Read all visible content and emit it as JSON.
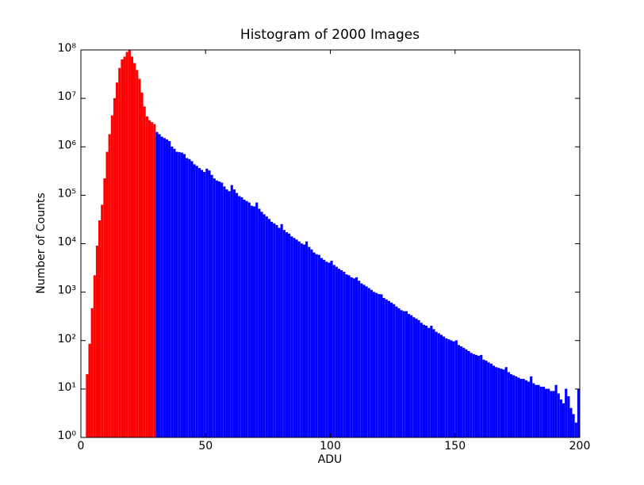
{
  "chart_data": {
    "type": "histogram",
    "title": "Histogram of 2000 Images",
    "x_label": "ADU",
    "y_label": "Number of Counts",
    "log_y": true,
    "xlim": [
      0,
      200
    ],
    "ylim": [
      1,
      100000000
    ],
    "xticks": [
      0,
      50,
      100,
      150,
      200
    ],
    "yticks": [
      {
        "value": 1,
        "label": "10⁰"
      },
      {
        "value": 10,
        "label": "10¹"
      },
      {
        "value": 100,
        "label": "10²"
      },
      {
        "value": 1000,
        "label": "10³"
      },
      {
        "value": 10000,
        "label": "10⁴"
      },
      {
        "value": 100000,
        "label": "10⁵"
      },
      {
        "value": 1000000,
        "label": "10⁶"
      },
      {
        "value": 10000000,
        "label": "10⁷"
      },
      {
        "value": 100000000,
        "label": "10⁸"
      }
    ],
    "series": [
      {
        "color": "#ff0000",
        "bins": [
          2,
          3,
          4,
          5,
          6,
          7,
          8,
          9,
          10,
          11,
          12,
          13,
          14,
          15,
          16,
          17,
          18,
          19,
          20,
          21,
          22,
          23,
          24,
          25,
          26,
          27,
          28,
          29,
          30
        ],
        "values": [
          20,
          85,
          460,
          2200,
          9000,
          30000,
          63000,
          220000,
          780000,
          1800000,
          4400000,
          10000000,
          21000000,
          42000000,
          63000000,
          72000000,
          90000000,
          100000000,
          72000000,
          53000000,
          38000000,
          25000000,
          13000000,
          6700000,
          4200000,
          3500000,
          3200000,
          2900000
        ]
      },
      {
        "color": "#0000ff",
        "bins": [
          30,
          31,
          32,
          33,
          34,
          35,
          36,
          37,
          38,
          39,
          40,
          41,
          42,
          43,
          44,
          45,
          46,
          47,
          48,
          49,
          50,
          51,
          52,
          53,
          54,
          55,
          56,
          57,
          58,
          59,
          60,
          61,
          62,
          63,
          64,
          65,
          66,
          67,
          68,
          69,
          70,
          71,
          72,
          73,
          74,
          75,
          76,
          77,
          78,
          79,
          80,
          81,
          82,
          83,
          84,
          85,
          86,
          87,
          88,
          89,
          90,
          91,
          92,
          93,
          94,
          95,
          96,
          97,
          98,
          99,
          100,
          101,
          102,
          103,
          104,
          105,
          106,
          107,
          108,
          109,
          110,
          111,
          112,
          113,
          114,
          115,
          116,
          117,
          118,
          119,
          120,
          121,
          122,
          123,
          124,
          125,
          126,
          127,
          128,
          129,
          130,
          131,
          132,
          133,
          134,
          135,
          136,
          137,
          138,
          139,
          140,
          141,
          142,
          143,
          144,
          145,
          146,
          147,
          148,
          149,
          150,
          151,
          152,
          153,
          154,
          155,
          156,
          157,
          158,
          159,
          160,
          161,
          162,
          163,
          164,
          165,
          166,
          167,
          168,
          169,
          170,
          171,
          172,
          173,
          174,
          175,
          176,
          177,
          178,
          179,
          180,
          181,
          182,
          183,
          184,
          185,
          186,
          187,
          188,
          189,
          190,
          191,
          192,
          193,
          194,
          195,
          196,
          197,
          198,
          199,
          200
        ],
        "values": [
          2000000,
          1800000,
          1600000,
          1500000,
          1400000,
          1300000,
          1000000,
          900000,
          780000,
          770000,
          750000,
          700000,
          580000,
          550000,
          500000,
          430000,
          400000,
          360000,
          330000,
          300000,
          350000,
          320000,
          260000,
          220000,
          200000,
          190000,
          180000,
          150000,
          130000,
          120000,
          160000,
          130000,
          110000,
          95000,
          90000,
          80000,
          75000,
          70000,
          60000,
          58000,
          70000,
          52000,
          45000,
          40000,
          36000,
          32000,
          28000,
          26000,
          24000,
          21000,
          25000,
          19000,
          17000,
          16000,
          14000,
          13000,
          12000,
          11000,
          10000,
          9500,
          11000,
          8500,
          7500,
          6500,
          6000,
          5800,
          5000,
          4600,
          4200,
          4000,
          4400,
          3600,
          3300,
          3000,
          2800,
          2600,
          2300,
          2200,
          2000,
          1900,
          2000,
          1700,
          1500,
          1400,
          1300,
          1200,
          1100,
          1000,
          950,
          900,
          890,
          750,
          700,
          650,
          600,
          560,
          500,
          460,
          420,
          400,
          400,
          350,
          330,
          300,
          280,
          260,
          230,
          210,
          200,
          180,
          200,
          170,
          150,
          140,
          130,
          120,
          110,
          105,
          100,
          95,
          100,
          80,
          75,
          70,
          65,
          60,
          55,
          52,
          50,
          48,
          50,
          40,
          38,
          35,
          33,
          30,
          28,
          27,
          26,
          25,
          28,
          22,
          20,
          19,
          18,
          17,
          16,
          16,
          15,
          14,
          18,
          13,
          12,
          12,
          11,
          11,
          10,
          10,
          9,
          9,
          12,
          8,
          6,
          5,
          10,
          7,
          4,
          3,
          2,
          10
        ]
      }
    ]
  }
}
